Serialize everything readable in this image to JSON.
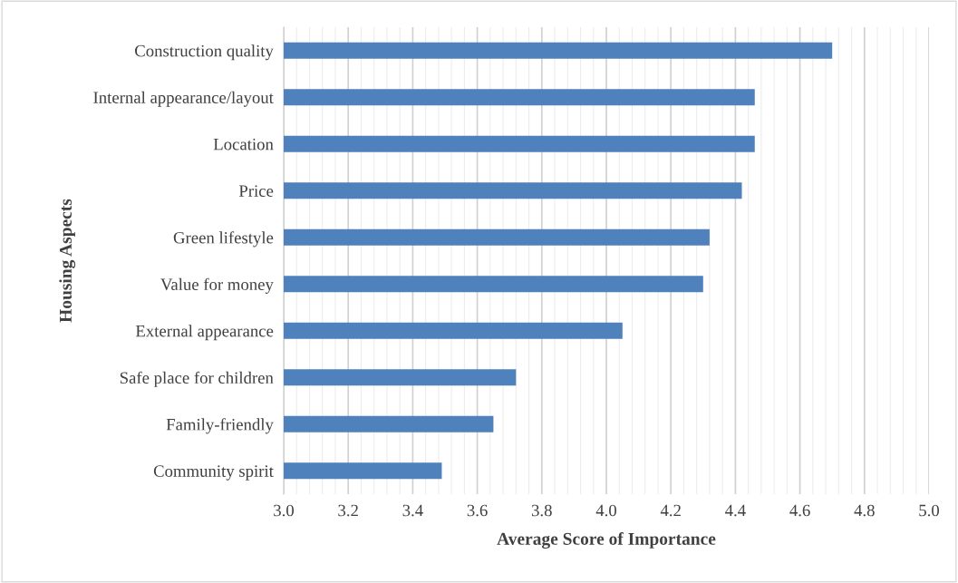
{
  "chart_data": {
    "type": "bar",
    "orientation": "horizontal",
    "xlabel": "Average Score of Importance",
    "ylabel": "Housing Aspects",
    "categories": [
      "Construction quality",
      "Internal appearance/layout",
      "Location",
      "Price",
      "Green lifestyle",
      "Value for money",
      "External appearance",
      "Safe place for children",
      "Family-friendly",
      "Community spirit"
    ],
    "values": [
      4.7,
      4.46,
      4.46,
      4.42,
      4.32,
      4.3,
      4.05,
      3.72,
      3.65,
      3.49
    ],
    "color": "#4f81bd",
    "xlim": [
      3.0,
      5.0
    ],
    "xticks": [
      {
        "value": 3.0,
        "label": "3.0"
      },
      {
        "value": 3.2,
        "label": "3.2"
      },
      {
        "value": 3.4,
        "label": "3.4"
      },
      {
        "value": 3.6,
        "label": "3.6"
      },
      {
        "value": 3.8,
        "label": "3.8"
      },
      {
        "value": 4.0,
        "label": "4.0"
      },
      {
        "value": 4.2,
        "label": "4.2"
      },
      {
        "value": 4.4,
        "label": "4.4"
      },
      {
        "value": 4.6,
        "label": "4.6"
      },
      {
        "value": 4.8,
        "label": "4.8"
      },
      {
        "value": 5.0,
        "label": "5.0"
      }
    ],
    "grid": "x"
  }
}
